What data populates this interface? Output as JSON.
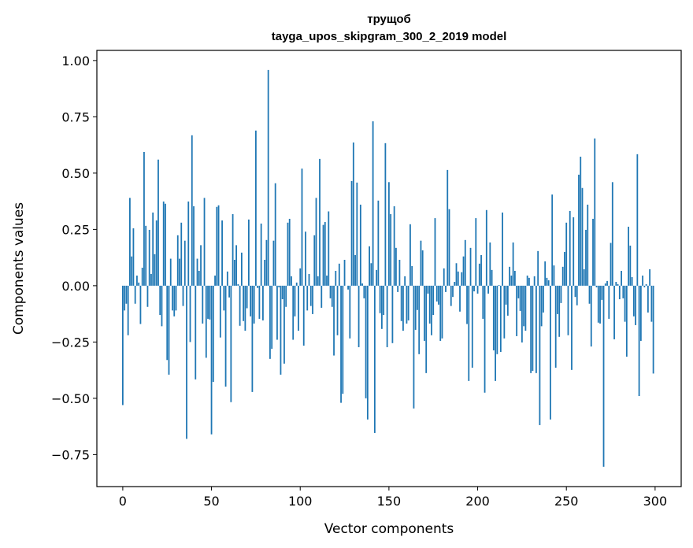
{
  "chart_data": {
    "type": "bar",
    "title": [
      "трущоб",
      "tayga_upos_skipgram_300_2_2019 model"
    ],
    "xlabel": "Vector components",
    "ylabel": "Components values",
    "xlim": [
      -14.6,
      314.7
    ],
    "ylim": [
      -0.892,
      1.045
    ],
    "grid": false,
    "bar_color": "#1f77b4",
    "xticks": [
      0,
      50,
      100,
      150,
      200,
      250,
      300
    ],
    "xtick_labels": [
      "0",
      "50",
      "100",
      "150",
      "200",
      "250",
      "300"
    ],
    "yticks": [
      -0.75,
      -0.5,
      -0.25,
      0,
      0.25,
      0.5,
      0.75,
      1.0
    ],
    "ytick_labels": [
      "−0.75",
      "−0.50",
      "−0.25",
      "0.00",
      "0.25",
      "0.50",
      "0.75",
      "1.00"
    ],
    "values": [
      -0.53,
      -0.11,
      -0.08,
      -0.22,
      0.39,
      0.13,
      0.255,
      -0.08,
      0.045,
      0.014,
      -0.17,
      0.08,
      0.594,
      0.266,
      -0.094,
      0.248,
      0.052,
      0.325,
      0.14,
      0.29,
      0.56,
      -0.13,
      -0.18,
      0.374,
      0.364,
      -0.33,
      -0.395,
      0.12,
      -0.11,
      -0.136,
      -0.11,
      0.224,
      0.12,
      0.28,
      -0.09,
      0.2,
      -0.68,
      0.374,
      -0.25,
      0.668,
      0.353,
      -0.416,
      0.12,
      0.066,
      0.18,
      -0.168,
      0.39,
      -0.32,
      -0.147,
      -0.15,
      -0.66,
      -0.427,
      0.045,
      0.35,
      0.357,
      -0.23,
      0.29,
      -0.11,
      -0.448,
      0.063,
      -0.052,
      -0.517,
      0.318,
      0.115,
      0.18,
      0.007,
      -0.178,
      0.147,
      -0.157,
      -0.2,
      -0.1,
      0.294,
      -0.136,
      -0.472,
      -0.168,
      0.689,
      -0.01,
      -0.147,
      0.276,
      -0.154,
      0.115,
      0.203,
      0.958,
      -0.325,
      -0.28,
      0.2,
      0.455,
      -0.24,
      -0.007,
      -0.395,
      -0.06,
      -0.346,
      -0.094,
      0.28,
      0.297,
      0.042,
      -0.24,
      -0.136,
      0.014,
      -0.2,
      0.077,
      0.52,
      -0.266,
      0.24,
      -0.11,
      0.052,
      -0.09,
      -0.126,
      0.224,
      0.39,
      0.042,
      0.563,
      -0.098,
      0.27,
      0.283,
      0.045,
      0.33,
      -0.056,
      -0.094,
      -0.31,
      0.066,
      -0.22,
      0.098,
      -0.52,
      -0.48,
      0.115,
      0.0,
      -0.017,
      -0.234,
      0.465,
      0.636,
      0.136,
      0.458,
      -0.273,
      0.36,
      0.01,
      -0.056,
      -0.5,
      -0.594,
      0.175,
      0.1,
      0.73,
      -0.654,
      0.07,
      0.378,
      -0.122,
      -0.192,
      -0.13,
      0.633,
      -0.273,
      0.46,
      0.318,
      -0.255,
      0.353,
      0.168,
      -0.028,
      0.115,
      -0.157,
      -0.2,
      0.042,
      -0.168,
      -0.154,
      0.273,
      0.087,
      -0.545,
      -0.196,
      -0.108,
      -0.304,
      0.2,
      0.157,
      -0.245,
      -0.388,
      -0.035,
      -0.168,
      -0.22,
      -0.13,
      0.3,
      -0.07,
      -0.084,
      -0.245,
      -0.234,
      0.077,
      -0.028,
      0.514,
      0.34,
      -0.09,
      -0.05,
      0.017,
      0.1,
      0.063,
      -0.115,
      0.06,
      0.13,
      0.203,
      -0.17,
      -0.423,
      0.168,
      -0.364,
      -0.025,
      0.3,
      -0.035,
      0.098,
      0.136,
      -0.147,
      -0.475,
      0.336,
      -0.035,
      0.192,
      0.07,
      -0.287,
      -0.423,
      -0.304,
      0.003,
      -0.294,
      0.325,
      -0.234,
      -0.084,
      -0.133,
      0.084,
      0.045,
      0.192,
      0.066,
      -0.224,
      -0.056,
      -0.112,
      -0.252,
      -0.18,
      -0.2,
      0.045,
      0.035,
      -0.388,
      -0.378,
      0.042,
      -0.388,
      0.154,
      -0.619,
      -0.18,
      -0.119,
      0.108,
      0.035,
      0.024,
      -0.594,
      0.405,
      0.09,
      -0.364,
      -0.126,
      -0.227,
      -0.077,
      0.084,
      0.15,
      0.28,
      -0.22,
      0.332,
      -0.374,
      0.304,
      -0.05,
      -0.087,
      0.493,
      0.573,
      0.434,
      0.073,
      0.248,
      0.36,
      -0.08,
      -0.27,
      0.297,
      0.654,
      -0.007,
      -0.164,
      -0.168,
      -0.063,
      -0.804,
      0.01,
      0.021,
      -0.147,
      0.19,
      0.46,
      -0.238,
      0.017,
      0.007,
      -0.06,
      0.066,
      -0.056,
      -0.16,
      -0.315,
      0.262,
      0.178,
      0.038,
      -0.136,
      -0.175,
      0.584,
      -0.49,
      -0.245,
      0.045,
      -0.007,
      0.007,
      -0.119,
      0.073,
      -0.16,
      -0.39
    ]
  }
}
